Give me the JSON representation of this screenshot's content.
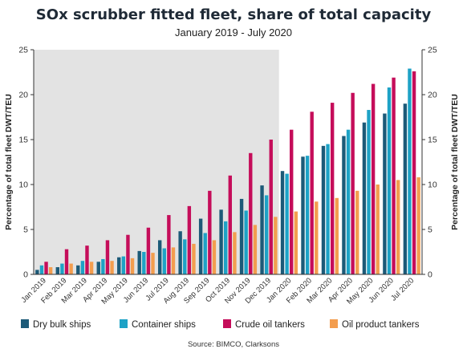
{
  "chart_data": {
    "type": "bar",
    "title": "SOx scrubber fitted fleet, share of total capacity",
    "subtitle": "January 2019 - July 2020",
    "ylabel": "Percentage of total fleet DWT/TEU",
    "ylabel_right": "Percentage of total fleet DWT/TEU",
    "source": "Source: BIMCO, Clarksons",
    "ylim": [
      0,
      25
    ],
    "yticks": [
      "0",
      "5",
      "10",
      "15",
      "20",
      "25"
    ],
    "grid": false,
    "legend_position": "bottom",
    "shaded_through_category": "Dec 2019",
    "shade_color": "#e3e3e3",
    "categories": [
      "Jan 2019",
      "Feb 2019",
      "Mar 2019",
      "Apr 2019",
      "May 2019",
      "Jun 2019",
      "Jul 2019",
      "Aug 2019",
      "Sep 2019",
      "Oct 2019",
      "Nov 2019",
      "Dec 2019",
      "Jan 2020",
      "Feb 2020",
      "Mar 2020",
      "Apr 2020",
      "May 2020",
      "Jun 2020",
      "Jul 2020"
    ],
    "series": [
      {
        "name": "Dry bulk ships",
        "color": "#1c5a78",
        "values": [
          0.5,
          0.8,
          1.0,
          1.4,
          1.9,
          2.6,
          3.8,
          4.8,
          6.2,
          7.2,
          8.4,
          9.9,
          11.5,
          13.1,
          14.3,
          15.4,
          16.9,
          17.9,
          19.0
        ]
      },
      {
        "name": "Container ships",
        "color": "#1ea2c6",
        "values": [
          1.0,
          1.2,
          1.5,
          1.7,
          2.0,
          2.5,
          2.9,
          3.9,
          4.6,
          5.9,
          7.1,
          8.8,
          11.2,
          13.2,
          14.5,
          16.1,
          18.3,
          20.8,
          22.9
        ]
      },
      {
        "name": "Crude oil tankers",
        "color": "#c50d5a",
        "values": [
          1.4,
          2.8,
          3.2,
          3.8,
          4.4,
          5.2,
          6.6,
          7.6,
          9.3,
          11.0,
          13.5,
          15.0,
          16.1,
          18.1,
          19.1,
          20.2,
          21.2,
          21.9,
          22.6
        ]
      },
      {
        "name": "Oil product tankers",
        "color": "#f39d4e",
        "values": [
          0.8,
          1.2,
          1.4,
          1.5,
          1.8,
          2.4,
          3.0,
          3.4,
          3.8,
          4.7,
          5.5,
          6.4,
          7.0,
          8.1,
          8.5,
          9.3,
          10.0,
          10.5,
          10.8
        ]
      }
    ]
  }
}
